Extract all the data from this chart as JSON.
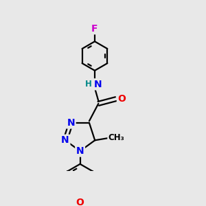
{
  "bg_color": "#e8e8e8",
  "atom_colors": {
    "N": "#0000ee",
    "O": "#ee0000",
    "F": "#cc00cc",
    "H": "#008888",
    "C": "#000000"
  },
  "bond_color": "#000000",
  "bond_width": 1.6,
  "dbo": 0.055,
  "font_size_atom": 9.5,
  "font_size_small": 8.5
}
